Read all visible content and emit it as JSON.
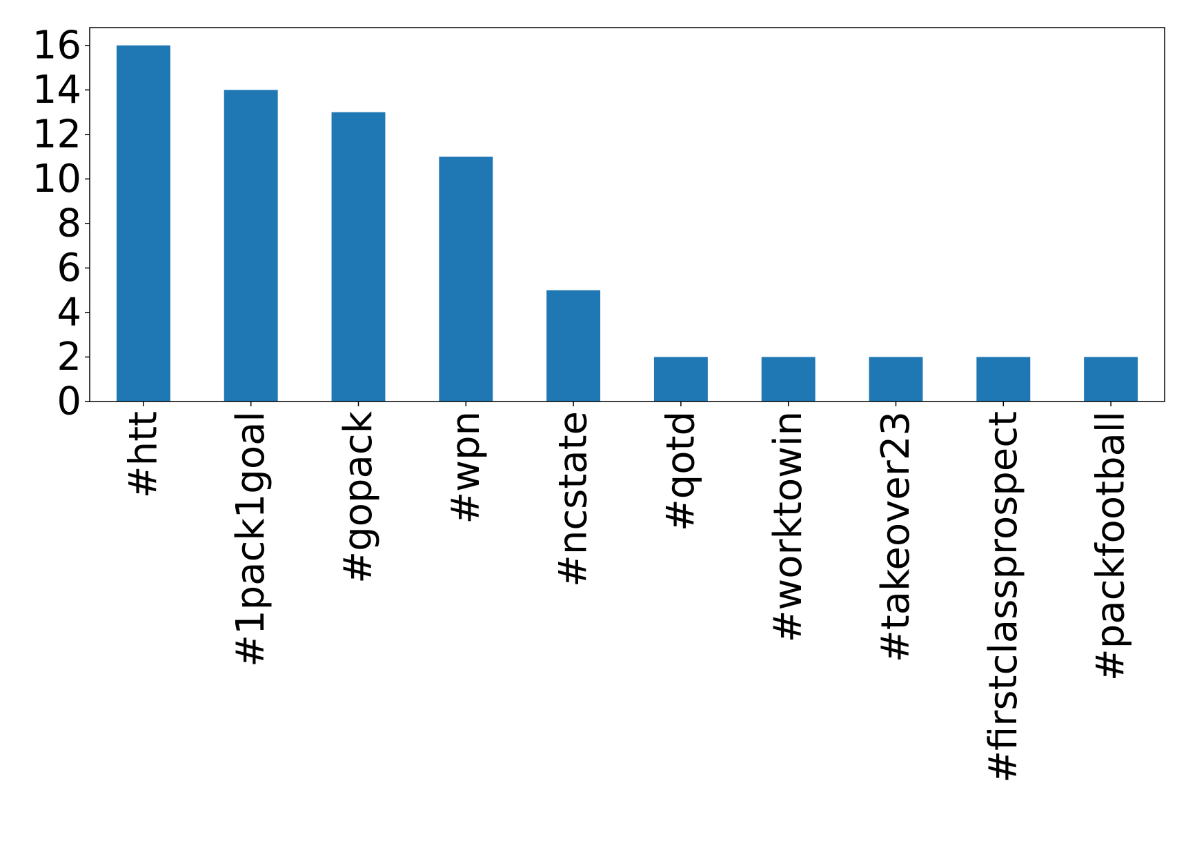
{
  "chart_data": {
    "type": "bar",
    "categories": [
      "#htt",
      "#1pack1goal",
      "#gopack",
      "#wpn",
      "#ncstate",
      "#qotd",
      "#worktowin",
      "#takeover23",
      "#firstclassprospect",
      "#packfootball"
    ],
    "values": [
      16,
      14,
      13,
      11,
      5,
      2,
      2,
      2,
      2,
      2
    ],
    "ylim": [
      0,
      16.8
    ],
    "yticks": [
      0,
      2,
      4,
      6,
      8,
      10,
      12,
      14,
      16
    ],
    "xlabel": "",
    "ylabel": "",
    "title": "",
    "bar_color": "#1f77b4",
    "grid": false
  }
}
